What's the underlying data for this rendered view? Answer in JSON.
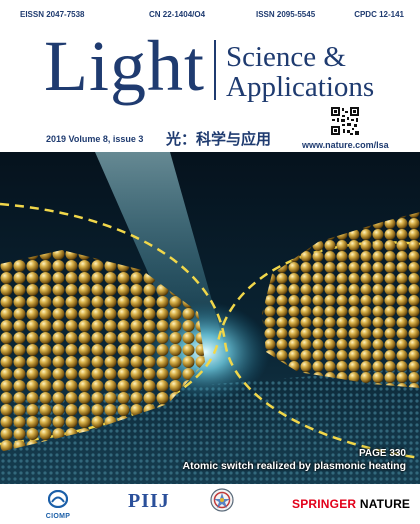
{
  "ids": {
    "eissn": "EISSN 2047-7538",
    "cn": "CN 22-1404/O4",
    "issn": "ISSN 2095-5545",
    "cpdc": "CPDC 12-141"
  },
  "masthead": {
    "title": "Light",
    "subtitle_line1": "Science &",
    "subtitle_line2": "Applications"
  },
  "issue": {
    "label": "2019 Volume 8, issue 3",
    "chinese_title": "光：科学与应用",
    "website": "www.nature.com/lsa"
  },
  "feature": {
    "page": "PAGE 330",
    "headline": "Atomic switch realized by plasmonic heating"
  },
  "logos": {
    "ciomp": "CIOMP",
    "pilj": "PIIJ",
    "springer": "SPRINGER",
    "nature": "NATURE"
  },
  "colors": {
    "brand_blue": "#1f3b70",
    "springer_red": "#e2001a",
    "gold": "#c9a033",
    "cyan_glow": "#7fe8ff"
  }
}
